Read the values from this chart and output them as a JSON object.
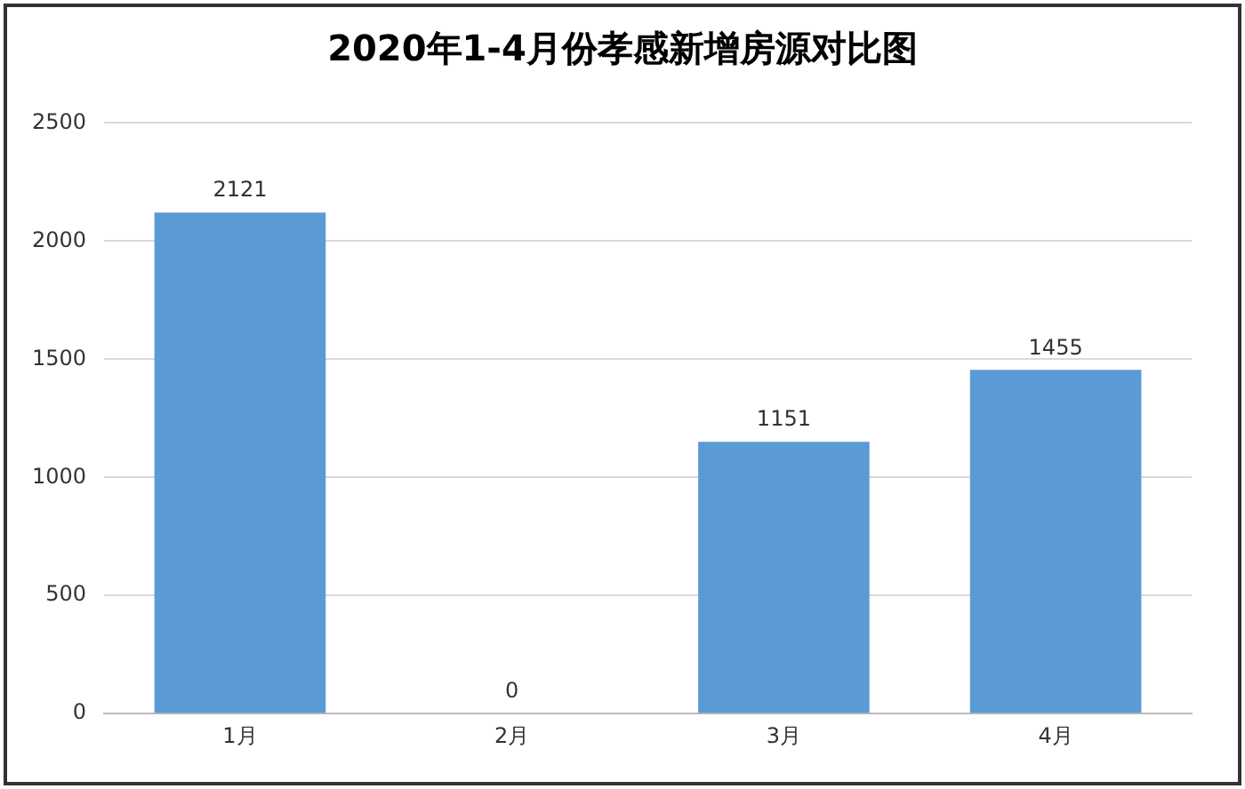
{
  "chart_data": {
    "type": "bar",
    "title": "2020年1-4月份孝感新增房源对比图",
    "categories": [
      "1月",
      "2月",
      "3月",
      "4月"
    ],
    "values": [
      2121,
      0,
      1151,
      1455
    ],
    "color": "#5b9bd5",
    "ylim": [
      0,
      2500
    ],
    "yticks": [
      0,
      500,
      1000,
      1500,
      2000,
      2500
    ],
    "grid": "y",
    "data_labels": true
  }
}
